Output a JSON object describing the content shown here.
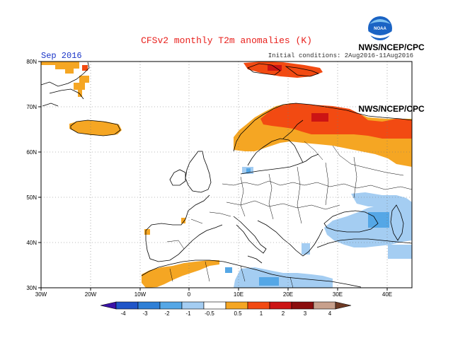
{
  "header": {
    "title": "CFSv2 monthly T2m anomalies (K)",
    "month": "Sep 2016",
    "initial_conditions": "Initial conditions: 2Aug2016-11Aug2016",
    "credit_top": "NWS/NCEP/CPC",
    "credit_side": "NWS/NCEP/CPC",
    "logo_text": "NOAA"
  },
  "map": {
    "lon_range": [
      -30,
      45
    ],
    "lat_range": [
      30,
      80
    ],
    "lon_ticks": [
      "30W",
      "20W",
      "10W",
      "0",
      "10E",
      "20E",
      "30E",
      "40E"
    ],
    "lat_ticks": [
      "30N",
      "40N",
      "50N",
      "60N",
      "70N",
      "80N"
    ],
    "grid": "dotted"
  },
  "colorbar": {
    "labels": [
      "-4",
      "-3",
      "-2",
      "-1",
      "-0.5",
      "0.5",
      "1",
      "2",
      "3",
      "4"
    ],
    "colors": [
      "#3b13a8",
      "#1f55c8",
      "#2e7fd6",
      "#55a7e6",
      "#a4cdf2",
      "#ffffff",
      "#f5a623",
      "#f24a12",
      "#cc1414",
      "#8b0d0d",
      "#c8a08c"
    ]
  },
  "anomaly_regions": [
    {
      "name": "scandinavia-warm",
      "class": "0.5 to 1"
    },
    {
      "name": "north-russia-warm",
      "class": "1 to 2"
    },
    {
      "name": "svalbard-warm",
      "class": "1 to 2"
    },
    {
      "name": "iceland-warm",
      "class": "0.5 to 1"
    },
    {
      "name": "greenland-east-warm",
      "class": "0.5 to 1"
    },
    {
      "name": "north-africa-warm",
      "class": "0.5 to 1"
    },
    {
      "name": "turkey-cool",
      "class": "-1 to -0.5"
    },
    {
      "name": "east-med-cool",
      "class": "-1 to -0.5"
    }
  ]
}
